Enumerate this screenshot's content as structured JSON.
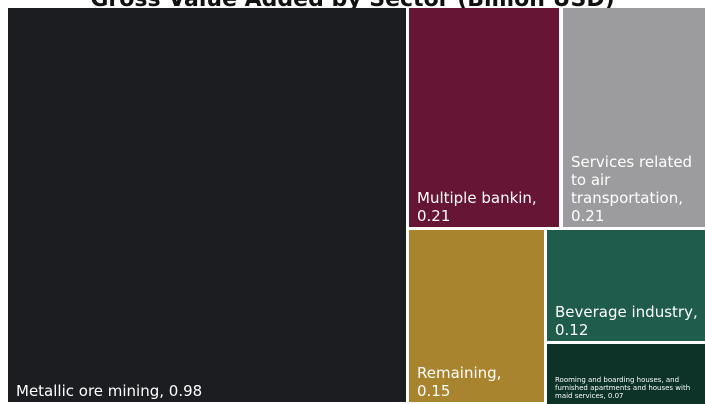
{
  "chart_data": {
    "type": "treemap",
    "title": "Gross Value Added by Sector (Billion USD)",
    "items": [
      {
        "label": "Metallic ore mining",
        "value": 0.98,
        "display_lines": [
          "Metallic ore mining, 0.98"
        ],
        "color": "#1b1d20"
      },
      {
        "label": "Multiple bankin",
        "value": 0.21,
        "display_lines": [
          "Multiple bankin,",
          "0.21"
        ],
        "color": "#661534"
      },
      {
        "label": "Services related to air transportation",
        "value": 0.21,
        "display_lines": [
          "Services related",
          "to air",
          "transportation,",
          "0.21"
        ],
        "color": "#9c9c9e"
      },
      {
        "label": "Remaining",
        "value": 0.15,
        "display_lines": [
          "Remaining,",
          "0.15"
        ],
        "color": "#a8842e"
      },
      {
        "label": "Beverage industry",
        "value": 0.12,
        "display_lines": [
          "Beverage industry,",
          "0.12"
        ],
        "color": "#1f5c4b"
      },
      {
        "label": "Rooming and boarding houses, and furnished apartments and houses with maid services",
        "value": 0.07,
        "display_lines": [
          "Rooming and boarding houses, and",
          "furnished apartments and houses with",
          "maid services, 0.07"
        ],
        "color": "#0d3329"
      }
    ]
  }
}
